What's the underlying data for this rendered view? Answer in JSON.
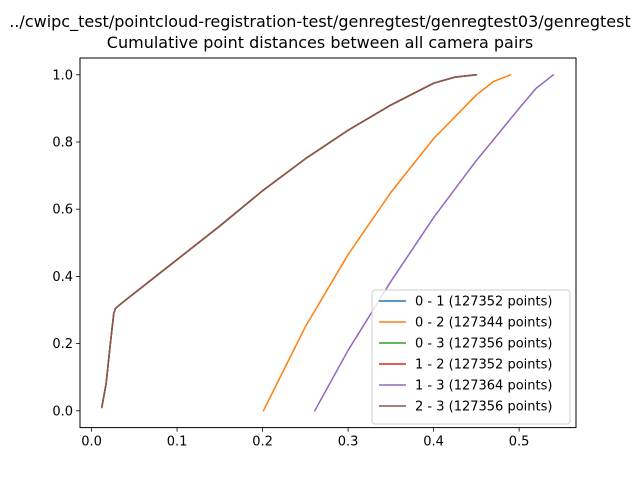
{
  "chart_data": {
    "type": "line",
    "title": "../cwipc_test/pointcloud-registration-test/genregtest/genregtest03/genregtest",
    "subtitle": "Cumulative point distances between all camera pairs",
    "xlabel": "",
    "ylabel": "",
    "xlim": [
      -0.0135,
      0.5665
    ],
    "ylim": [
      -0.05,
      1.05
    ],
    "xticks": [
      0.0,
      0.1,
      0.2,
      0.3,
      0.4,
      0.5
    ],
    "xtick_labels": [
      "0.0",
      "0.1",
      "0.2",
      "0.3",
      "0.4",
      "0.5"
    ],
    "yticks": [
      0.0,
      0.2,
      0.4,
      0.6,
      0.8,
      1.0
    ],
    "ytick_labels": [
      "0.0",
      "0.2",
      "0.4",
      "0.6",
      "0.8",
      "1.0"
    ],
    "grid": false,
    "legend_position": "lower-right",
    "series": [
      {
        "name": "0 - 1 (127352 points)",
        "color": "#1f77b4",
        "x": [
          0.012,
          0.017,
          0.022,
          0.026,
          0.028,
          0.04,
          0.06,
          0.1,
          0.15,
          0.2,
          0.25,
          0.3,
          0.35,
          0.4,
          0.425,
          0.45
        ],
        "y": [
          0.01,
          0.08,
          0.2,
          0.29,
          0.305,
          0.33,
          0.37,
          0.45,
          0.55,
          0.655,
          0.75,
          0.835,
          0.91,
          0.975,
          0.993,
          1.0
        ]
      },
      {
        "name": "0 - 2 (127344 points)",
        "color": "#ff7f0e",
        "x": [
          0.201,
          0.25,
          0.3,
          0.35,
          0.4,
          0.45,
          0.47,
          0.49
        ],
        "y": [
          0.0,
          0.25,
          0.465,
          0.65,
          0.81,
          0.94,
          0.98,
          1.0
        ]
      },
      {
        "name": "0 - 3 (127356 points)",
        "color": "#2ca02c",
        "x": [
          0.012,
          0.017,
          0.022,
          0.026,
          0.028,
          0.04,
          0.06,
          0.1,
          0.15,
          0.2,
          0.25,
          0.3,
          0.35,
          0.4,
          0.425,
          0.45
        ],
        "y": [
          0.01,
          0.08,
          0.2,
          0.29,
          0.305,
          0.33,
          0.37,
          0.45,
          0.55,
          0.655,
          0.75,
          0.835,
          0.91,
          0.975,
          0.993,
          1.0
        ]
      },
      {
        "name": "1 - 2 (127352 points)",
        "color": "#d62728",
        "x": [
          0.012,
          0.017,
          0.022,
          0.026,
          0.028,
          0.04,
          0.06,
          0.1,
          0.15,
          0.2,
          0.25,
          0.3,
          0.35,
          0.4,
          0.425,
          0.45
        ],
        "y": [
          0.01,
          0.08,
          0.2,
          0.29,
          0.305,
          0.33,
          0.37,
          0.45,
          0.55,
          0.655,
          0.75,
          0.835,
          0.91,
          0.975,
          0.993,
          1.0
        ]
      },
      {
        "name": "1 - 3 (127364 points)",
        "color": "#9467bd",
        "x": [
          0.261,
          0.3,
          0.35,
          0.4,
          0.45,
          0.5,
          0.52,
          0.54
        ],
        "y": [
          0.0,
          0.18,
          0.385,
          0.575,
          0.745,
          0.9,
          0.96,
          1.0
        ]
      },
      {
        "name": "2 - 3 (127356 points)",
        "color": "#8c564b",
        "x": [
          0.012,
          0.017,
          0.022,
          0.026,
          0.028,
          0.04,
          0.06,
          0.1,
          0.15,
          0.2,
          0.25,
          0.3,
          0.35,
          0.4,
          0.425,
          0.45
        ],
        "y": [
          0.01,
          0.08,
          0.2,
          0.29,
          0.305,
          0.33,
          0.37,
          0.45,
          0.55,
          0.655,
          0.75,
          0.835,
          0.91,
          0.975,
          0.993,
          1.0
        ]
      }
    ]
  }
}
